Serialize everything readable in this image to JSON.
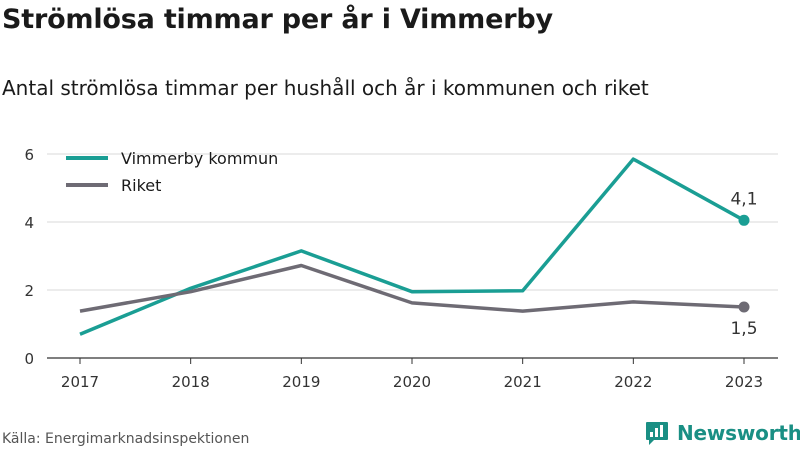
{
  "title": "Strömlösa timmar per år i Vimmerby",
  "subtitle": "Antal strömlösa timmar per hushåll och år i kommunen och riket",
  "source": "Källa: Energimarknadsinspektionen",
  "brand": "Newsworthy",
  "colors": {
    "vimmerby": "#1a9e94",
    "riket": "#6e6b74",
    "grid": "#d9d9d9",
    "text": "#333333"
  },
  "chart_data": {
    "type": "line",
    "x": [
      "2017",
      "2018",
      "2019",
      "2020",
      "2021",
      "2022",
      "2023"
    ],
    "ylim": [
      0,
      6
    ],
    "yticks": [
      0,
      2,
      4,
      6
    ],
    "grid": true,
    "legend": "top-left",
    "series": [
      {
        "name": "Vimmerby kommun",
        "values": [
          0.7,
          2.05,
          3.15,
          1.95,
          1.98,
          5.85,
          4.05
        ]
      },
      {
        "name": "Riket",
        "values": [
          1.38,
          1.95,
          2.72,
          1.62,
          1.38,
          1.65,
          1.5
        ]
      }
    ],
    "end_labels": [
      "4,1",
      "1,5"
    ]
  }
}
